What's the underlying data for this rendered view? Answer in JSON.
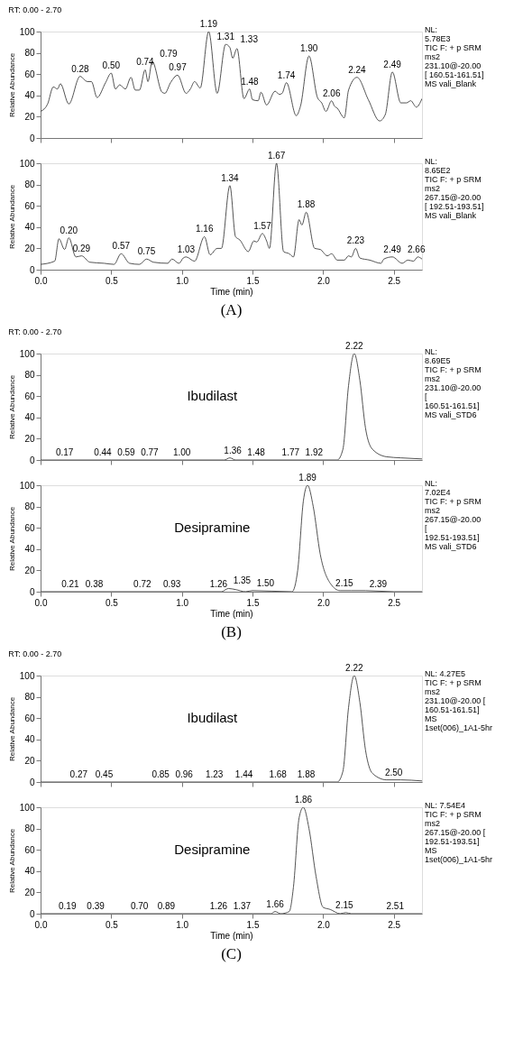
{
  "chart_data": [
    {
      "type": "line",
      "title": "RT: 0.00 - 2.70",
      "ylabel": "Relative Abundance",
      "xlim": [
        0,
        2.7
      ],
      "ylim": [
        0,
        100
      ],
      "tick_labels": "y",
      "grid": false,
      "xticks": [
        0,
        0.5,
        1,
        1.5,
        2,
        2.5
      ],
      "yticks": [
        0,
        20,
        40,
        60,
        80,
        100
      ],
      "series": [
        {
          "color": "#404040",
          "x": [
            0,
            0.05,
            0.09,
            0.12,
            0.14,
            0.2,
            0.28,
            0.33,
            0.36,
            0.4,
            0.46,
            0.5,
            0.53,
            0.56,
            0.6,
            0.64,
            0.67,
            0.7,
            0.74,
            0.76,
            0.79,
            0.86,
            0.88,
            0.92,
            0.97,
            1.03,
            1.06,
            1.09,
            1.13,
            1.19,
            1.25,
            1.31,
            1.34,
            1.36,
            1.39,
            1.44,
            1.48,
            1.5,
            1.54,
            1.56,
            1.6,
            1.66,
            1.69,
            1.71,
            1.74,
            1.81,
            1.84,
            1.9,
            1.96,
            1.99,
            2.02,
            2.06,
            2.08,
            2.1,
            2.15,
            2.18,
            2.24,
            2.32,
            2.4,
            2.44,
            2.49,
            2.55,
            2.59,
            2.62,
            2.66,
            2.7
          ],
          "values": [
            25,
            32,
            48,
            46,
            51,
            32,
            58,
            53,
            53,
            38,
            52,
            61,
            46,
            50,
            46,
            57,
            45,
            45,
            64,
            53,
            72,
            43,
            42,
            52,
            59,
            42,
            46,
            53,
            47,
            100,
            42,
            88,
            85,
            75,
            84,
            37,
            46,
            36,
            35,
            43,
            31,
            44,
            41,
            42,
            52,
            21,
            30,
            77,
            38,
            33,
            25,
            35,
            30,
            28,
            19,
            45,
            57,
            36,
            16,
            22,
            62,
            33,
            33,
            35,
            29,
            37
          ]
        }
      ],
      "annotations": [
        "NL:\n5.78E3\nTIC F: + p SRM\nms2\n231.10@-20.00\n[ 160.51-161.51]\n MS vali_Blank",
        {
          "text": "0.28",
          "x": 0.28,
          "y": 58
        },
        {
          "text": "0.50",
          "x": 0.5,
          "y": 61
        },
        {
          "text": "0.74",
          "x": 0.74,
          "y": 64
        },
        {
          "text": "0.79",
          "x": 0.79,
          "y": 72
        },
        {
          "text": "0.97",
          "x": 0.97,
          "y": 59
        },
        {
          "text": "1.19",
          "x": 1.19,
          "y": 100
        },
        {
          "text": "1.31",
          "x": 1.31,
          "y": 88
        },
        {
          "text": "1.33",
          "x": 1.33,
          "y": 86
        },
        {
          "text": "1.48",
          "x": 1.48,
          "y": 46
        },
        {
          "text": "1.74",
          "x": 1.74,
          "y": 52
        },
        {
          "text": "1.90",
          "x": 1.9,
          "y": 77
        },
        {
          "text": "2.06",
          "x": 2.06,
          "y": 35
        },
        {
          "text": "2.24",
          "x": 2.24,
          "y": 57
        },
        {
          "text": "2.49",
          "x": 2.49,
          "y": 62
        }
      ]
    },
    {
      "type": "line",
      "title": "(A)",
      "xlabel": "Time (min)",
      "ylabel": "Relative Abundance",
      "xlim": [
        0,
        2.7
      ],
      "ylim": [
        0,
        100
      ],
      "grid": false,
      "xticks": [
        {
          "value": 0,
          "label": "0.0"
        },
        0.5,
        {
          "value": 1,
          "label": "1.0"
        },
        1.5,
        {
          "value": 2,
          "label": "2.0"
        },
        2.5
      ],
      "yticks": [
        0,
        20,
        40,
        60,
        80,
        100
      ],
      "series": [
        {
          "color": "#404040",
          "x": [
            0,
            0.1,
            0.13,
            0.17,
            0.2,
            0.25,
            0.29,
            0.35,
            0.45,
            0.52,
            0.57,
            0.63,
            0.7,
            0.75,
            0.8,
            0.9,
            0.93,
            0.98,
            1.01,
            1.03,
            1.09,
            1.16,
            1.2,
            1.25,
            1.28,
            1.34,
            1.38,
            1.41,
            1.47,
            1.51,
            1.53,
            1.57,
            1.6,
            1.62,
            1.67,
            1.72,
            1.76,
            1.79,
            1.83,
            1.85,
            1.88,
            1.94,
            1.98,
            2.03,
            2.06,
            2.1,
            2.15,
            2.18,
            2.2,
            2.23,
            2.26,
            2.33,
            2.41,
            2.43,
            2.49,
            2.56,
            2.6,
            2.64,
            2.67,
            2.7
          ],
          "values": [
            5,
            8,
            29,
            19,
            30,
            12,
            13,
            7,
            6,
            5,
            15,
            6,
            5,
            10,
            7,
            6,
            10,
            6,
            11,
            12,
            8,
            31,
            14,
            20,
            20,
            79,
            31,
            28,
            17,
            27,
            26,
            34,
            27,
            20,
            100,
            17,
            15,
            12,
            47,
            42,
            54,
            20,
            19,
            13,
            15,
            9,
            9,
            13,
            12,
            20,
            11,
            9,
            6,
            10,
            12,
            6,
            9,
            8,
            12,
            10
          ]
        }
      ],
      "annotations": [
        "NL:\n8.65E2\nTIC F: + p SRM\nms2\n267.15@-20.00\n[ 192.51-193.51]\n MS vali_Blank",
        {
          "text": "0.20",
          "x": 0.2,
          "y": 30
        },
        {
          "text": "0.29",
          "x": 0.29,
          "y": 13
        },
        {
          "text": "0.57",
          "x": 0.57,
          "y": 15
        },
        {
          "text": "0.75",
          "x": 0.75,
          "y": 10
        },
        {
          "text": "1.03",
          "x": 1.03,
          "y": 12
        },
        {
          "text": "1.16",
          "x": 1.16,
          "y": 31
        },
        {
          "text": "1.34",
          "x": 1.34,
          "y": 79
        },
        {
          "text": "1.57",
          "x": 1.57,
          "y": 34
        },
        {
          "text": "1.67",
          "x": 1.67,
          "y": 100
        },
        {
          "text": "1.88",
          "x": 1.88,
          "y": 54
        },
        {
          "text": "2.23",
          "x": 2.23,
          "y": 20
        },
        {
          "text": "2.49",
          "x": 2.49,
          "y": 12
        },
        {
          "text": "2.66",
          "x": 2.66,
          "y": 12
        }
      ]
    },
    {
      "type": "line",
      "title": "RT: 0.00 - 2.70",
      "ylabel": "Relative Abundance",
      "xlim": [
        0,
        2.7
      ],
      "ylim": [
        0,
        100
      ],
      "tick_labels": "y",
      "grid": false,
      "xticks": [
        0,
        0.5,
        1,
        1.5,
        2,
        2.5
      ],
      "yticks": [
        0,
        20,
        40,
        60,
        80,
        100
      ],
      "series": [
        {
          "name": "Ibudilast",
          "color": "#404040",
          "x": [
            0,
            1.3,
            1.34,
            1.38,
            2.1,
            2.14,
            2.18,
            2.22,
            2.26,
            2.3,
            2.35,
            2.45,
            2.55,
            2.7
          ],
          "values": [
            0,
            0,
            2,
            0,
            0,
            10,
            70,
            100,
            75,
            30,
            10,
            3,
            2,
            1
          ]
        }
      ],
      "annotations": [
        "NL:\n8.69E5\nTIC F: + p SRM\nms2\n231.10@-20.00\n[\n160.51-161.51]\nMS vali_STD6",
        {
          "text": "0.17",
          "x": 0.17,
          "y": 0
        },
        {
          "text": "0.44",
          "x": 0.44,
          "y": 0
        },
        {
          "text": "0.59",
          "x": 0.59,
          "y": 0
        },
        {
          "text": "0.77",
          "x": 0.77,
          "y": 0
        },
        {
          "text": "1.00",
          "x": 1.0,
          "y": 0
        },
        {
          "text": "1.36",
          "x": 1.36,
          "y": 2
        },
        {
          "text": "1.48",
          "x": 1.48,
          "y": 0
        },
        {
          "text": "1.77",
          "x": 1.77,
          "y": 0
        },
        {
          "text": "1.92",
          "x": 1.92,
          "y": 0
        },
        {
          "text": "2.22",
          "x": 2.22,
          "y": 100
        }
      ]
    },
    {
      "type": "line",
      "title": "(B)",
      "xlabel": "Time (min)",
      "ylabel": "Relative Abundance",
      "xlim": [
        0,
        2.7
      ],
      "ylim": [
        0,
        100
      ],
      "grid": false,
      "xticks": [
        {
          "value": 0,
          "label": "0.0"
        },
        0.5,
        {
          "value": 1,
          "label": "1.0"
        },
        1.5,
        {
          "value": 2,
          "label": "2.0"
        },
        2.5
      ],
      "yticks": [
        0,
        20,
        40,
        60,
        80,
        100
      ],
      "series": [
        {
          "name": "Desipramine",
          "color": "#404040",
          "x": [
            0,
            1.28,
            1.33,
            1.38,
            1.45,
            1.5,
            1.78,
            1.82,
            1.86,
            1.89,
            1.93,
            1.98,
            2.05,
            2.12,
            2.2,
            2.3,
            2.5,
            2.7
          ],
          "values": [
            0,
            0,
            3,
            2,
            0,
            1,
            0,
            20,
            85,
            100,
            80,
            35,
            8,
            1,
            1,
            1,
            0,
            0
          ]
        }
      ],
      "annotations": [
        "NL:\n7.02E4\nTIC F: + p SRM\nms2\n267.15@-20.00\n[\n192.51-193.51]\nMS vali_STD6",
        {
          "text": "0.21",
          "x": 0.21,
          "y": 0
        },
        {
          "text": "0.38",
          "x": 0.38,
          "y": 0
        },
        {
          "text": "0.72",
          "x": 0.72,
          "y": 0
        },
        {
          "text": "0.93",
          "x": 0.93,
          "y": 0
        },
        {
          "text": "1.26",
          "x": 1.26,
          "y": 0
        },
        {
          "text": "1.35",
          "x": 1.35,
          "y": 3
        },
        {
          "text": "1.50",
          "x": 1.5,
          "y": 1
        },
        {
          "text": "1.89",
          "x": 1.89,
          "y": 100
        },
        {
          "text": "2.15",
          "x": 2.15,
          "y": 1
        },
        {
          "text": "2.39",
          "x": 2.39,
          "y": 0
        }
      ]
    },
    {
      "type": "line",
      "title": "RT: 0.00 - 2.70",
      "ylabel": "Relative Abundance",
      "xlim": [
        0,
        2.7
      ],
      "ylim": [
        0,
        100
      ],
      "tick_labels": "y",
      "grid": false,
      "xticks": [
        0,
        0.5,
        1,
        1.5,
        2,
        2.5
      ],
      "yticks": [
        0,
        20,
        40,
        60,
        80,
        100
      ],
      "series": [
        {
          "name": "Ibudilast",
          "color": "#404040",
          "x": [
            0,
            2.1,
            2.14,
            2.18,
            2.22,
            2.26,
            2.3,
            2.35,
            2.45,
            2.55,
            2.7
          ],
          "values": [
            0,
            0,
            10,
            70,
            100,
            75,
            30,
            8,
            2,
            2,
            1
          ]
        }
      ],
      "annotations": [
        "NL: 4.27E5\nTIC F: + p SRM\nms2\n231.10@-20.00 [\n160.51-161.51]\nMS\n1set(006)_1A1-5hr",
        {
          "text": "0.27",
          "x": 0.27,
          "y": 0
        },
        {
          "text": "0.45",
          "x": 0.45,
          "y": 0
        },
        {
          "text": "0.85",
          "x": 0.85,
          "y": 0
        },
        {
          "text": "0.96",
          "x": 0.96,
          "y": 0
        },
        {
          "text": "1.23",
          "x": 1.23,
          "y": 0
        },
        {
          "text": "1.44",
          "x": 1.44,
          "y": 0
        },
        {
          "text": "1.68",
          "x": 1.68,
          "y": 0
        },
        {
          "text": "1.88",
          "x": 1.88,
          "y": 0
        },
        {
          "text": "2.22",
          "x": 2.22,
          "y": 100
        },
        {
          "text": "2.50",
          "x": 2.5,
          "y": 2
        }
      ]
    },
    {
      "type": "line",
      "title": "(C)",
      "xlabel": "Time (min)",
      "ylabel": "Relative Abundance",
      "xlim": [
        0,
        2.7
      ],
      "ylim": [
        0,
        100
      ],
      "grid": false,
      "xticks": [
        {
          "value": 0,
          "label": "0.0"
        },
        0.5,
        {
          "value": 1,
          "label": "1.0"
        },
        1.5,
        {
          "value": 2,
          "label": "2.0"
        },
        2.5
      ],
      "yticks": [
        0,
        20,
        40,
        60,
        80,
        100
      ],
      "series": [
        {
          "name": "Desipramine",
          "color": "#404040",
          "x": [
            0,
            1.63,
            1.66,
            1.7,
            1.76,
            1.79,
            1.83,
            1.86,
            1.9,
            1.95,
            2.0,
            2.05,
            2.12,
            2.16,
            2.2,
            2.7
          ],
          "values": [
            0,
            0,
            2,
            0,
            2,
            25,
            90,
            100,
            80,
            35,
            6,
            4,
            0,
            1,
            0,
            0
          ]
        }
      ],
      "annotations": [
        "NL: 7.54E4\nTIC F: + p SRM\nms2\n267.15@-20.00 [\n192.51-193.51]\nMS\n1set(006)_1A1-5hr",
        {
          "text": "0.19",
          "x": 0.19,
          "y": 0
        },
        {
          "text": "0.39",
          "x": 0.39,
          "y": 0
        },
        {
          "text": "0.70",
          "x": 0.7,
          "y": 0
        },
        {
          "text": "0.89",
          "x": 0.89,
          "y": 0
        },
        {
          "text": "1.26",
          "x": 1.26,
          "y": 0
        },
        {
          "text": "1.37",
          "x": 1.37,
          "y": 0
        },
        {
          "text": "1.66",
          "x": 1.66,
          "y": 2
        },
        {
          "text": "1.86",
          "x": 1.86,
          "y": 100
        },
        {
          "text": "2.15",
          "x": 2.15,
          "y": 1
        },
        {
          "text": "2.51",
          "x": 2.51,
          "y": 0
        }
      ]
    }
  ]
}
